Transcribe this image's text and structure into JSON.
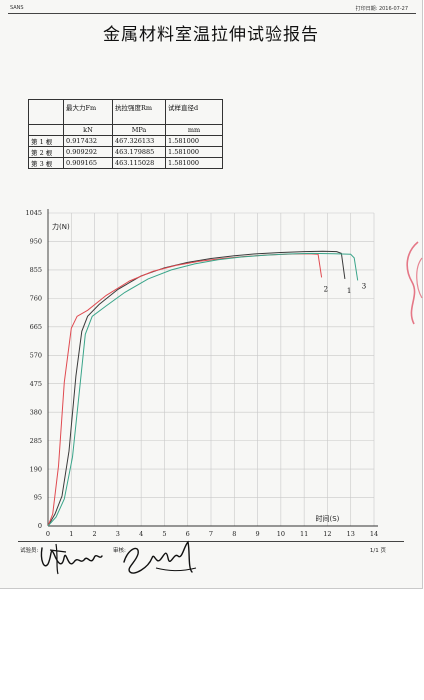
{
  "header": {
    "left": "SANS",
    "print_date_label": "打印日期:",
    "print_date": "2016-07-27"
  },
  "title": "金属材料室温拉伸试验报告",
  "table": {
    "columns": [
      "",
      "最大力Fm",
      "抗拉强度Rm",
      "试样直径d"
    ],
    "units": [
      "",
      "kN",
      "MPa",
      "mm"
    ],
    "rows": [
      [
        "第 1 根",
        "0.917432",
        "467.326133",
        "1.581000"
      ],
      [
        "第 2 根",
        "0.909292",
        "463.179885",
        "1.581000"
      ],
      [
        "第 3 根",
        "0.909165",
        "463.115028",
        "1.581000"
      ]
    ]
  },
  "footer": {
    "tester_label": "试验员:",
    "reviewer_label": "审核:",
    "page": "1/1 页"
  },
  "chart_data": {
    "type": "line",
    "ylabel": "力(N)",
    "xlabel": "时间(S)",
    "xlim": [
      0,
      14
    ],
    "ylim": [
      0,
      1045
    ],
    "xticks": [
      0,
      1,
      2,
      3,
      4,
      5,
      6,
      7,
      8,
      9,
      10,
      11,
      12,
      13,
      14
    ],
    "yticks": [
      0,
      95,
      190,
      285,
      380,
      475,
      570,
      665,
      760,
      855,
      950,
      1045
    ],
    "grid": true,
    "series": [
      {
        "name": "1",
        "color": "#3a3a3a",
        "x": [
          0,
          0.3,
          0.6,
          0.9,
          1.2,
          1.45,
          1.7,
          2.2,
          3,
          4,
          5,
          6,
          7,
          8,
          9,
          10,
          11,
          11.8,
          12.4,
          12.6,
          12.75
        ],
        "y": [
          0,
          40,
          100,
          250,
          500,
          650,
          700,
          740,
          790,
          835,
          862,
          880,
          893,
          902,
          909,
          913,
          916,
          917,
          916,
          910,
          825
        ]
      },
      {
        "name": "2",
        "color": "#e04a50",
        "x": [
          0,
          0.2,
          0.45,
          0.7,
          1.0,
          1.25,
          1.7,
          2.5,
          3.5,
          4.5,
          5.5,
          6.5,
          7.5,
          8.5,
          9.5,
          10.5,
          11.2,
          11.6,
          11.75
        ],
        "y": [
          0,
          40,
          200,
          480,
          660,
          700,
          720,
          770,
          818,
          850,
          870,
          884,
          893,
          900,
          905,
          908,
          909,
          907,
          830
        ]
      },
      {
        "name": "3",
        "color": "#3aa58a",
        "x": [
          0,
          0.35,
          0.7,
          1.05,
          1.35,
          1.6,
          1.9,
          2.5,
          3.3,
          4.3,
          5.3,
          6.3,
          7.3,
          8.3,
          9.3,
          10.3,
          11.3,
          12.3,
          13,
          13.15,
          13.3
        ],
        "y": [
          0,
          30,
          90,
          230,
          450,
          640,
          700,
          735,
          780,
          825,
          855,
          875,
          889,
          898,
          904,
          908,
          910,
          909,
          907,
          895,
          820
        ]
      }
    ]
  }
}
